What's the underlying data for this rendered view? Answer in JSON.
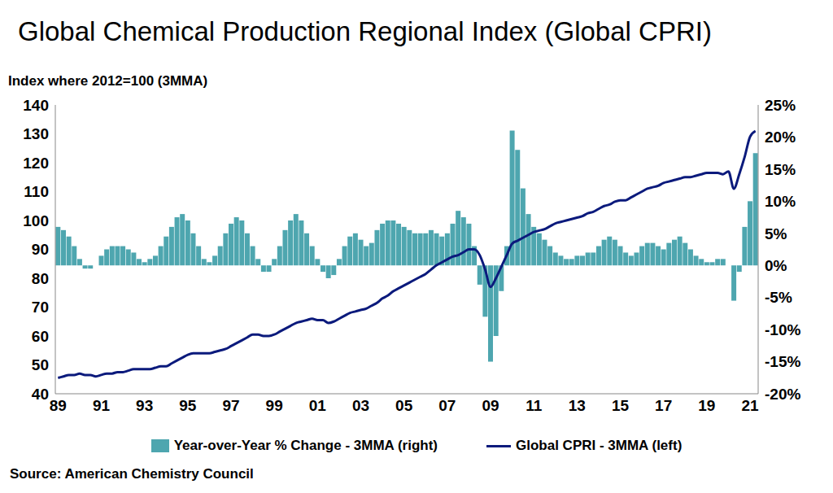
{
  "chart_data": {
    "type": "bar",
    "title": "Global Chemical Production Regional Index (Global CPRI)",
    "y_label": "Index where 2012=100  (3MMA)",
    "annotations": [
      "Source: American Chemistry Council"
    ],
    "categories": [
      "89",
      null,
      null,
      null,
      null,
      null,
      null,
      null,
      "91",
      null,
      null,
      null,
      null,
      null,
      null,
      null,
      "93",
      null,
      null,
      null,
      null,
      null,
      null,
      null,
      "95",
      null,
      null,
      null,
      null,
      null,
      null,
      null,
      "97",
      null,
      null,
      null,
      null,
      null,
      null,
      null,
      "99",
      null,
      null,
      null,
      null,
      null,
      null,
      null,
      "01",
      null,
      null,
      null,
      null,
      null,
      null,
      null,
      "03",
      null,
      null,
      null,
      null,
      null,
      null,
      null,
      "05",
      null,
      null,
      null,
      null,
      null,
      null,
      null,
      "07",
      null,
      null,
      null,
      null,
      null,
      null,
      null,
      "09",
      null,
      null,
      null,
      null,
      null,
      null,
      null,
      "11",
      null,
      null,
      null,
      null,
      null,
      null,
      null,
      "13",
      null,
      null,
      null,
      null,
      null,
      null,
      null,
      "15",
      null,
      null,
      null,
      null,
      null,
      null,
      null,
      "17",
      null,
      null,
      null,
      null,
      null,
      null,
      null,
      "19",
      null,
      null,
      null,
      null,
      null,
      null,
      null,
      "21",
      null
    ],
    "series": [
      {
        "name": "Year-over-Year % Change - 3MMA (right)",
        "type": "bar",
        "axis": "y2",
        "color": "#4ea6af",
        "values": [
          6,
          5.5,
          4.5,
          3,
          1,
          -0.5,
          -0.5,
          0,
          1.5,
          2.5,
          3,
          3,
          3,
          2.5,
          2,
          1,
          0.5,
          1,
          1.5,
          3,
          4.5,
          6,
          7.5,
          8,
          7,
          5,
          3,
          1,
          0.5,
          1.5,
          3,
          5,
          6.5,
          7.5,
          7,
          5,
          3,
          1,
          -1,
          -1,
          1,
          3,
          5.5,
          7,
          8,
          7,
          5,
          3,
          1,
          -1,
          -2,
          -1.5,
          1,
          3,
          4.5,
          5,
          4,
          3,
          3.5,
          5.5,
          6.5,
          7,
          7,
          6.5,
          6,
          5.5,
          5,
          5,
          5,
          5.5,
          5,
          4.5,
          5,
          6.5,
          8.5,
          7.5,
          6.5,
          3,
          -3,
          -8,
          -15,
          -11,
          -4,
          3,
          21,
          18,
          12,
          8,
          6,
          5,
          4,
          3,
          2,
          1.5,
          1,
          1,
          1.5,
          1.5,
          2,
          2,
          3,
          4,
          4.5,
          4,
          3,
          2,
          1.5,
          2,
          3,
          3.5,
          3.5,
          3,
          2.5,
          3.5,
          4,
          4.5,
          3.5,
          2.5,
          1.5,
          1,
          0.5,
          0.5,
          1,
          1,
          0,
          -5.5,
          -1,
          6,
          10,
          17.5
        ]
      },
      {
        "name": "Global CPRI - 3MMA (left)",
        "type": "line",
        "color": "#0b1a7c",
        "values": [
          45.5,
          46,
          46.5,
          46.5,
          47,
          46.5,
          46.5,
          46,
          46.5,
          47,
          47,
          47.5,
          47.5,
          48,
          48.5,
          48.5,
          48.5,
          48.5,
          49,
          49.5,
          49.5,
          50.5,
          51.5,
          52.5,
          53.5,
          54,
          54,
          54,
          54,
          54.5,
          55,
          55.5,
          56.5,
          57.5,
          58.5,
          59.5,
          60.5,
          60.5,
          60,
          60,
          60.5,
          61.5,
          62.5,
          63.5,
          64.5,
          65,
          65.5,
          66,
          65.5,
          65.5,
          64.5,
          65,
          66,
          67,
          68,
          68.5,
          69,
          69.5,
          70.5,
          71.5,
          73,
          74,
          75.5,
          76.5,
          77.5,
          78.5,
          79.5,
          80.5,
          81.5,
          83,
          84.5,
          85.5,
          86.5,
          87.5,
          88,
          89,
          90,
          90,
          88,
          83,
          77,
          80,
          84,
          88,
          92,
          93,
          94,
          95,
          96,
          96.5,
          97,
          98,
          99,
          99.5,
          100,
          100.5,
          101,
          101.5,
          102.5,
          103,
          104,
          105,
          105.5,
          106.5,
          107,
          107,
          108,
          109,
          110,
          111,
          111.5,
          112,
          113,
          113.5,
          114,
          114.5,
          115,
          115,
          115.5,
          116,
          116.5,
          116.5,
          116.5,
          116,
          117,
          111,
          116,
          122,
          129,
          131
        ]
      }
    ],
    "ylim": [
      40,
      140
    ],
    "yticks": [
      40,
      50,
      60,
      70,
      80,
      90,
      100,
      110,
      120,
      130,
      140
    ],
    "y2lim": [
      -20,
      25
    ],
    "y2ticks": [
      {
        "value": -20,
        "label": "-20%"
      },
      {
        "value": -15,
        "label": "-15%"
      },
      {
        "value": -10,
        "label": "-10%"
      },
      {
        "value": -5,
        "label": "-5%"
      },
      {
        "value": 0,
        "label": "0%"
      },
      {
        "value": 5,
        "label": "5%"
      },
      {
        "value": 10,
        "label": "10%"
      },
      {
        "value": 15,
        "label": "15%"
      },
      {
        "value": 20,
        "label": "20%"
      },
      {
        "value": 25,
        "label": "25%"
      }
    ],
    "grid": false,
    "legend": "bottom"
  }
}
